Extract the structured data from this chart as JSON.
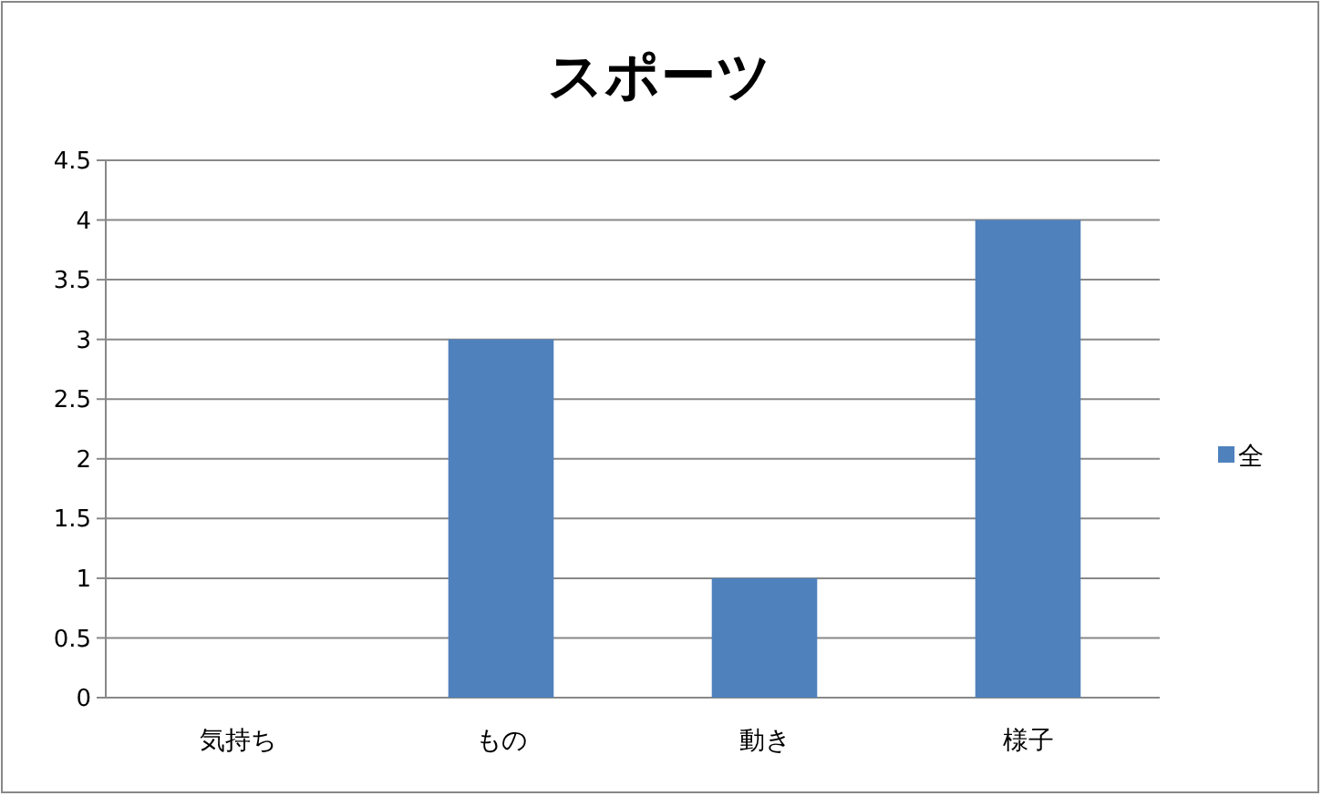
{
  "chart_data": {
    "type": "bar",
    "title": "スポーツ",
    "categories": [
      "気持ち",
      "もの",
      "動き",
      "様子"
    ],
    "series": [
      {
        "name": "全",
        "color": "#4f81bd",
        "values": [
          0,
          3,
          1,
          4
        ]
      }
    ],
    "ylim": [
      0,
      4.5
    ],
    "yticks": [
      0,
      0.5,
      1,
      1.5,
      2,
      2.5,
      3,
      3.5,
      4,
      4.5
    ],
    "grid": "y",
    "legend": "right"
  }
}
